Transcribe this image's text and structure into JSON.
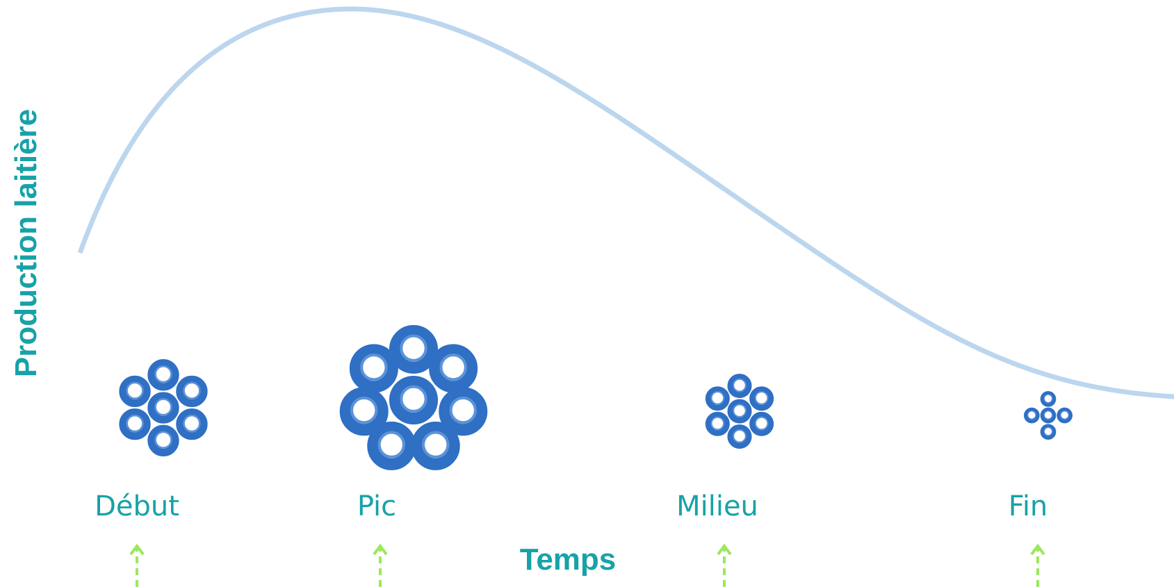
{
  "axes": {
    "y_label": "Production laitière",
    "x_label": "Temps"
  },
  "stages": [
    "Début",
    "Pic",
    "Milieu",
    "Fin"
  ]
}
